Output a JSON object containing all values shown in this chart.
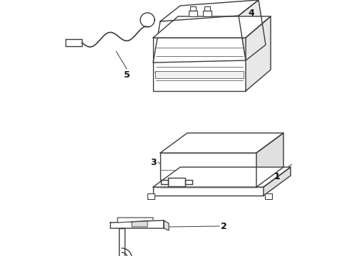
{
  "bg_color": "#ffffff",
  "line_color": "#3a3a3a",
  "label_color": "#111111",
  "figsize": [
    4.9,
    3.6
  ],
  "dpi": 100
}
